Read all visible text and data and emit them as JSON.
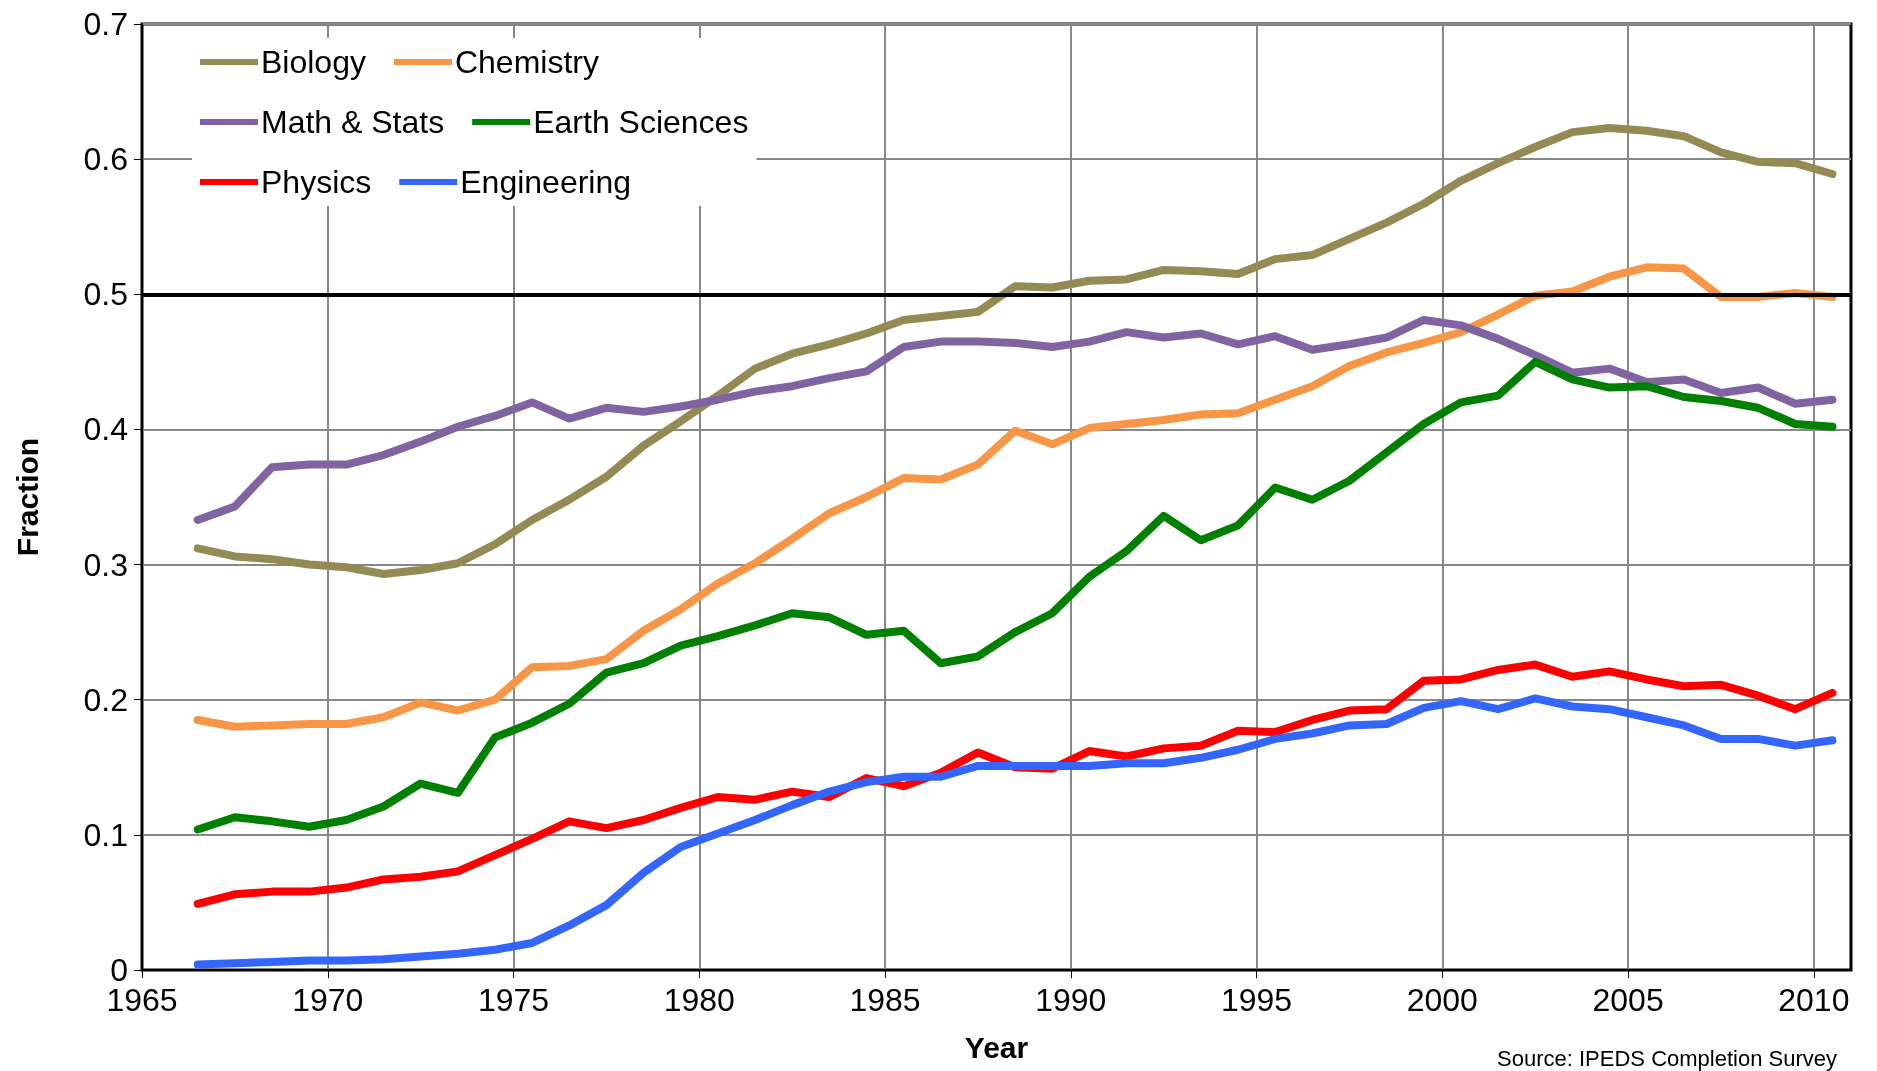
{
  "chart_data": {
    "type": "line",
    "xlabel": "Year",
    "ylabel": "Fraction",
    "x": [
      1966.5,
      1967.5,
      1968.5,
      1969.5,
      1970.5,
      1971.5,
      1972.5,
      1973.5,
      1974.5,
      1975.5,
      1976.5,
      1977.5,
      1978.5,
      1979.5,
      1980.5,
      1981.5,
      1982.5,
      1983.5,
      1984.5,
      1985.5,
      1986.5,
      1987.5,
      1988.5,
      1989.5,
      1990.5,
      1991.5,
      1992.5,
      1993.5,
      1994.5,
      1995.5,
      1996.5,
      1997.5,
      1998.5,
      1999.5,
      2000.5,
      2001.5,
      2002.5,
      2003.5,
      2004.5,
      2005.5,
      2006.5,
      2007.5,
      2008.5,
      2009.5,
      2010.5
    ],
    "series": [
      {
        "name": "Biology",
        "color": "#948a54",
        "values": [
          0.312,
          0.306,
          0.304,
          0.3,
          0.298,
          0.293,
          0.296,
          0.301,
          0.315,
          0.333,
          0.348,
          0.365,
          0.388,
          0.406,
          0.425,
          0.445,
          0.456,
          0.463,
          0.471,
          0.481,
          0.484,
          0.487,
          0.506,
          0.505,
          0.51,
          0.511,
          0.518,
          0.517,
          0.515,
          0.526,
          0.529,
          0.541,
          0.553,
          0.567,
          0.584,
          0.597,
          0.609,
          0.62,
          0.623,
          0.621,
          0.617,
          0.605,
          0.598,
          0.597,
          0.589
        ]
      },
      {
        "name": "Chemistry",
        "color": "#f79646",
        "values": [
          0.185,
          0.18,
          0.181,
          0.182,
          0.182,
          0.187,
          0.198,
          0.192,
          0.2,
          0.224,
          0.225,
          0.23,
          0.251,
          0.267,
          0.286,
          0.301,
          0.319,
          0.338,
          0.35,
          0.364,
          0.363,
          0.374,
          0.399,
          0.389,
          0.401,
          0.404,
          0.407,
          0.411,
          0.412,
          0.422,
          0.432,
          0.447,
          0.457,
          0.464,
          0.472,
          0.485,
          0.499,
          0.502,
          0.513,
          0.52,
          0.519,
          0.498,
          0.498,
          0.501,
          0.498
        ]
      },
      {
        "name": "Math & Stats",
        "color": "#8064a2",
        "values": [
          0.333,
          0.343,
          0.372,
          0.374,
          0.374,
          0.381,
          0.391,
          0.402,
          0.41,
          0.42,
          0.408,
          0.416,
          0.413,
          0.417,
          0.422,
          0.428,
          0.432,
          0.438,
          0.443,
          0.461,
          0.465,
          0.465,
          0.464,
          0.461,
          0.465,
          0.472,
          0.468,
          0.471,
          0.463,
          0.469,
          0.459,
          0.463,
          0.468,
          0.481,
          0.477,
          0.467,
          0.455,
          0.442,
          0.445,
          0.435,
          0.437,
          0.427,
          0.431,
          0.419,
          0.422
        ]
      },
      {
        "name": "Earth Sciences",
        "color": "#008000",
        "values": [
          0.104,
          0.113,
          0.11,
          0.106,
          0.111,
          0.121,
          0.138,
          0.131,
          0.172,
          0.183,
          0.197,
          0.22,
          0.227,
          0.24,
          0.247,
          0.255,
          0.264,
          0.261,
          0.248,
          0.251,
          0.227,
          0.232,
          0.25,
          0.264,
          0.291,
          0.31,
          0.336,
          0.318,
          0.329,
          0.357,
          0.348,
          0.362,
          0.383,
          0.404,
          0.42,
          0.425,
          0.45,
          0.437,
          0.431,
          0.432,
          0.424,
          0.421,
          0.416,
          0.404,
          0.402
        ]
      },
      {
        "name": "Physics",
        "color": "#ff0000",
        "values": [
          0.049,
          0.056,
          0.058,
          0.058,
          0.061,
          0.067,
          0.069,
          0.073,
          0.085,
          0.097,
          0.11,
          0.105,
          0.111,
          0.12,
          0.128,
          0.126,
          0.132,
          0.128,
          0.142,
          0.136,
          0.146,
          0.161,
          0.15,
          0.149,
          0.162,
          0.158,
          0.164,
          0.166,
          0.177,
          0.176,
          0.185,
          0.192,
          0.193,
          0.214,
          0.215,
          0.222,
          0.226,
          0.217,
          0.221,
          0.215,
          0.21,
          0.211,
          0.203,
          0.193,
          0.205
        ]
      },
      {
        "name": "Engineering",
        "color": "#3366ff",
        "values": [
          0.004,
          0.005,
          0.006,
          0.007,
          0.007,
          0.008,
          0.01,
          0.012,
          0.015,
          0.02,
          0.033,
          0.048,
          0.072,
          0.091,
          0.101,
          0.111,
          0.122,
          0.132,
          0.139,
          0.143,
          0.143,
          0.151,
          0.151,
          0.151,
          0.151,
          0.153,
          0.153,
          0.157,
          0.163,
          0.171,
          0.175,
          0.181,
          0.182,
          0.194,
          0.199,
          0.193,
          0.201,
          0.195,
          0.193,
          0.187,
          0.181,
          0.171,
          0.171,
          0.166,
          0.17
        ]
      }
    ],
    "xlim": [
      1965,
      2011
    ],
    "xticks": [
      1965,
      1970,
      1975,
      1980,
      1985,
      1990,
      1995,
      2000,
      2005,
      2010
    ],
    "ylim": [
      0,
      0.7
    ],
    "yticks": [
      0,
      0.1,
      0.2,
      0.3,
      0.4,
      0.5,
      0.6,
      0.7
    ],
    "ref_lines": [
      {
        "axis": "y",
        "value": 0.5,
        "color": "#000000"
      }
    ],
    "annotations": [
      "Source: IPEDS Completion Survey"
    ],
    "grid": true,
    "legend": "top left",
    "marker": "none",
    "line_style": "solid"
  }
}
